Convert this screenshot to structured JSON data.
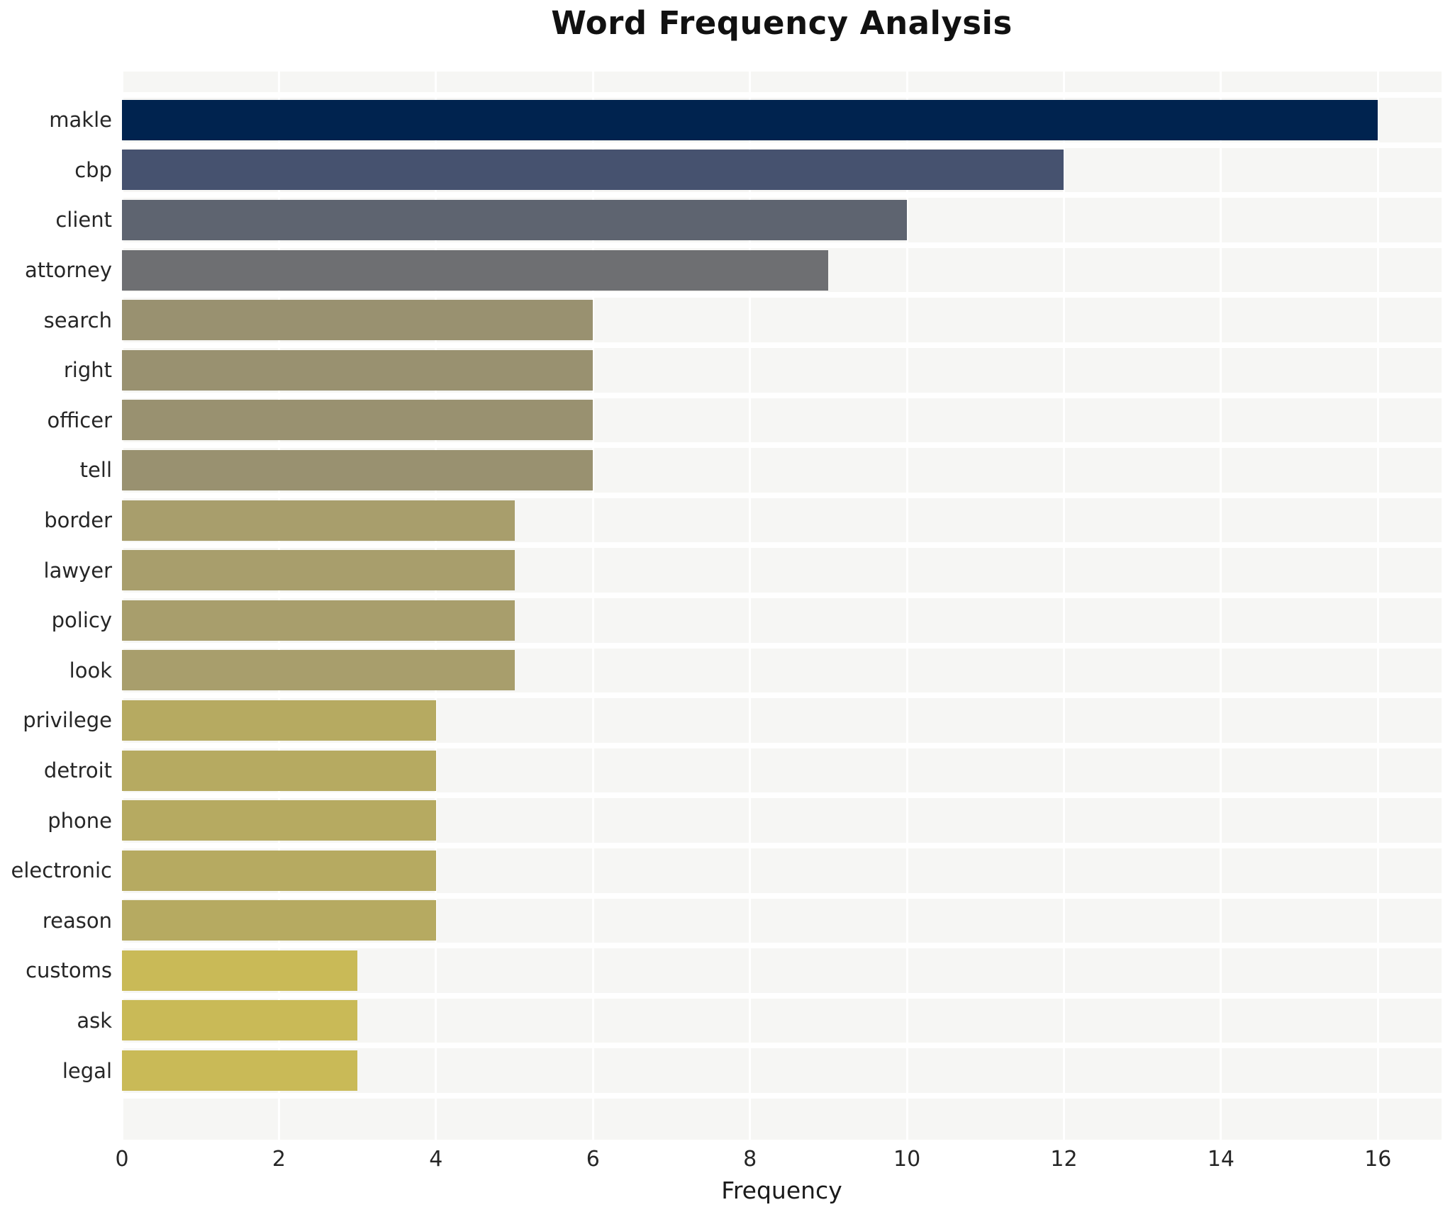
{
  "chart_data": {
    "type": "bar",
    "orientation": "horizontal",
    "title": "Word Frequency Analysis",
    "xlabel": "Frequency",
    "ylabel": "",
    "categories": [
      "makle",
      "cbp",
      "client",
      "attorney",
      "search",
      "right",
      "officer",
      "tell",
      "border",
      "lawyer",
      "policy",
      "look",
      "privilege",
      "detroit",
      "phone",
      "electronic",
      "reason",
      "customs",
      "ask",
      "legal"
    ],
    "values": [
      16,
      12,
      10,
      9,
      6,
      6,
      6,
      6,
      5,
      5,
      5,
      5,
      4,
      4,
      4,
      4,
      4,
      3,
      3,
      3
    ],
    "bar_colors": [
      "#00234f",
      "#46526f",
      "#5e6470",
      "#6e6f72",
      "#999170",
      "#999170",
      "#999170",
      "#999170",
      "#a89e6c",
      "#a89e6c",
      "#a89e6c",
      "#a89e6c",
      "#b6aa61",
      "#b6aa61",
      "#b6aa61",
      "#b6aa61",
      "#b6aa61",
      "#c9ba57",
      "#c9ba57",
      "#c9ba57"
    ],
    "x_ticks": [
      0,
      2,
      4,
      6,
      8,
      10,
      12,
      14,
      16
    ],
    "xlim": [
      0,
      16.81
    ],
    "grid": "on",
    "legend": "none",
    "colors": {
      "panel_bg": "#f6f6f4",
      "figure_bg": "#ffffff",
      "grid_line": "#ffffff",
      "tick_text": "#262626",
      "title_text": "#111111"
    }
  }
}
